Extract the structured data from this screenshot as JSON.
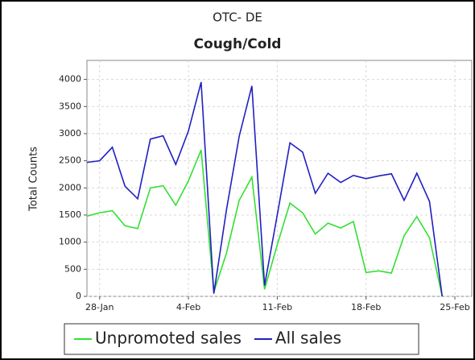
{
  "chart_data": {
    "type": "line",
    "title": "OTC- DE",
    "subtitle": "Cough/Cold",
    "ylabel": "Total Counts",
    "x": [
      "27-Jan",
      "28-Jan",
      "29-Jan",
      "30-Jan",
      "31-Jan",
      "1-Feb",
      "2-Feb",
      "3-Feb",
      "4-Feb",
      "5-Feb",
      "6-Feb",
      "7-Feb",
      "8-Feb",
      "9-Feb",
      "10-Feb",
      "11-Feb",
      "12-Feb",
      "13-Feb",
      "14-Feb",
      "15-Feb",
      "16-Feb",
      "17-Feb",
      "18-Feb",
      "19-Feb",
      "20-Feb",
      "21-Feb",
      "22-Feb",
      "23-Feb",
      "24-Feb"
    ],
    "series": [
      {
        "name": "Unpromoted sales",
        "color": "#33e033",
        "values": [
          1480,
          1540,
          1580,
          1300,
          1250,
          2000,
          2040,
          1680,
          2130,
          2700,
          80,
          800,
          1770,
          2200,
          130,
          950,
          1720,
          1540,
          1150,
          1350,
          1260,
          1380,
          440,
          470,
          430,
          1120,
          1470,
          1080,
          0
        ]
      },
      {
        "name": "All sales",
        "color": "#2020c0",
        "values": [
          2470,
          2500,
          2750,
          2030,
          1800,
          2900,
          2960,
          2430,
          3050,
          3950,
          50,
          1600,
          2950,
          3880,
          200,
          1500,
          2830,
          2660,
          1900,
          2270,
          2100,
          2230,
          2170,
          2220,
          2260,
          1770,
          2270,
          1750,
          0
        ]
      }
    ],
    "xlim": [
      "27-Jan",
      "25-Feb"
    ],
    "xticks": [
      "28-Jan",
      "4-Feb",
      "11-Feb",
      "18-Feb",
      "25-Feb"
    ],
    "ylim": [
      0,
      4350
    ],
    "yticks": [
      0,
      500,
      1000,
      1500,
      2000,
      2500,
      3000,
      3500,
      4000
    ],
    "grid": true,
    "legend": "bottom"
  }
}
